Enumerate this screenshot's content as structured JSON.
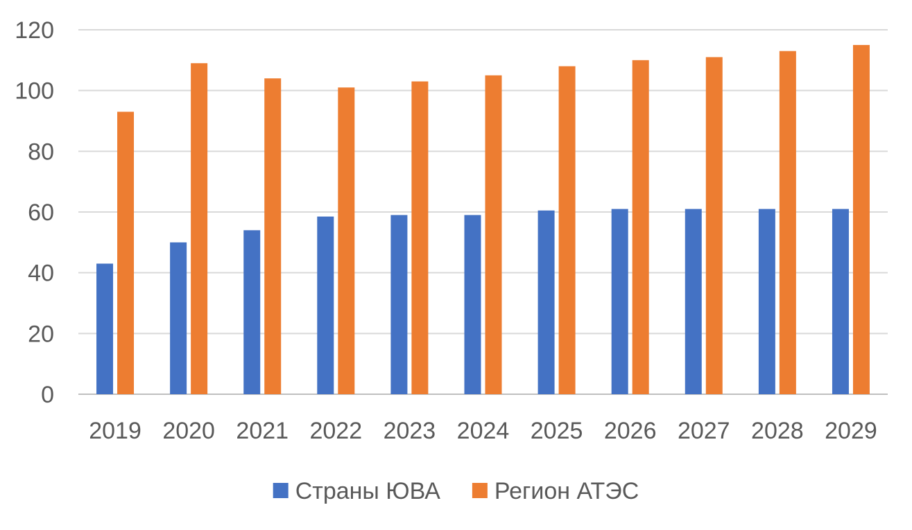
{
  "chart_data": {
    "type": "bar",
    "title": "",
    "xlabel": "",
    "ylabel": "",
    "categories": [
      "2019",
      "2020",
      "2021",
      "2022",
      "2023",
      "2024",
      "2025",
      "2026",
      "2027",
      "2028",
      "2029"
    ],
    "series": [
      {
        "name": "Страны ЮВА",
        "color": "#4472C4",
        "values": [
          43,
          50,
          54,
          58.5,
          59,
          59,
          60.5,
          61,
          61,
          61,
          61
        ]
      },
      {
        "name": "Регион АТЭС",
        "color": "#ED7D31",
        "values": [
          93,
          109,
          104,
          101,
          103,
          105,
          108,
          110,
          111,
          113,
          115
        ]
      }
    ],
    "ylim": [
      0,
      120
    ],
    "yticks": [
      0,
      20,
      40,
      60,
      80,
      100,
      120
    ],
    "grid": true,
    "legend_position": "bottom"
  }
}
